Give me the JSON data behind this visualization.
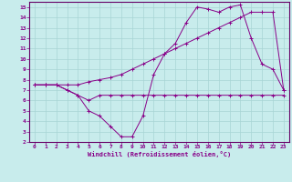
{
  "xlabel": "Windchill (Refroidissement éolien,°C)",
  "xlim": [
    -0.5,
    23.5
  ],
  "ylim": [
    2,
    15.5
  ],
  "xticks": [
    0,
    1,
    2,
    3,
    4,
    5,
    6,
    7,
    8,
    9,
    10,
    11,
    12,
    13,
    14,
    15,
    16,
    17,
    18,
    19,
    20,
    21,
    22,
    23
  ],
  "yticks": [
    2,
    3,
    4,
    5,
    6,
    7,
    8,
    9,
    10,
    11,
    12,
    13,
    14,
    15
  ],
  "background_color": "#c8ecec",
  "plot_bg_color": "#c8ecec",
  "line_color": "#880088",
  "grid_color": "#a8d4d4",
  "spine_color": "#660066",
  "line1_x": [
    0,
    1,
    2,
    3,
    4,
    5,
    6,
    7,
    8,
    9,
    10,
    11,
    12,
    13,
    14,
    15,
    16,
    17,
    18,
    19,
    20,
    21,
    22,
    23
  ],
  "line1_y": [
    7.5,
    7.5,
    7.5,
    7.0,
    6.5,
    6.0,
    6.5,
    6.5,
    6.5,
    6.5,
    6.5,
    6.5,
    6.5,
    6.5,
    6.5,
    6.5,
    6.5,
    6.5,
    6.5,
    6.5,
    6.5,
    6.5,
    6.5,
    6.5
  ],
  "line2_x": [
    0,
    1,
    2,
    3,
    4,
    5,
    6,
    7,
    8,
    9,
    10,
    11,
    12,
    13,
    14,
    15,
    16,
    17,
    18,
    19,
    20,
    21,
    22,
    23
  ],
  "line2_y": [
    7.5,
    7.5,
    7.5,
    7.0,
    6.5,
    5.0,
    4.5,
    3.5,
    2.5,
    2.5,
    4.5,
    8.5,
    10.5,
    11.5,
    13.5,
    15.0,
    14.8,
    14.5,
    15.0,
    15.2,
    12.0,
    9.5,
    9.0,
    7.0
  ],
  "line3_x": [
    0,
    1,
    2,
    3,
    4,
    5,
    6,
    7,
    8,
    9,
    10,
    11,
    12,
    13,
    14,
    15,
    16,
    17,
    18,
    19,
    20,
    21,
    22,
    23
  ],
  "line3_y": [
    7.5,
    7.5,
    7.5,
    7.5,
    7.5,
    7.8,
    8.0,
    8.2,
    8.5,
    9.0,
    9.5,
    10.0,
    10.5,
    11.0,
    11.5,
    12.0,
    12.5,
    13.0,
    13.5,
    14.0,
    14.5,
    14.5,
    14.5,
    7.0
  ]
}
